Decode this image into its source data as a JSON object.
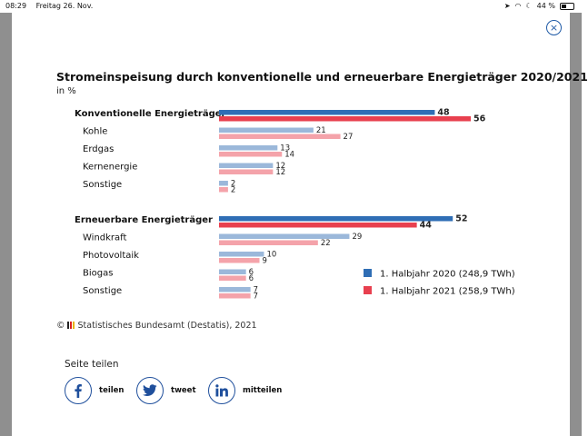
{
  "status_bar": {
    "time": "08:29",
    "date": "Freitag 26. Nov.",
    "battery": "44 %"
  },
  "dialog": {
    "close_symbol": "×"
  },
  "chart_data": {
    "type": "bar",
    "orientation": "horizontal",
    "title": "Stromeinspeisung durch konventionelle und erneuerbare Energieträger 2020/2021",
    "unit_label": "in %",
    "xlim": [
      0,
      56
    ],
    "grid": false,
    "legend_position": "bottom-right",
    "series": [
      {
        "name": "1. Halbjahr 2020 (248,9 TWh)",
        "color": "#2f6eb5",
        "light_color": "#9bb8da"
      },
      {
        "name": "1. Halbjahr 2021 (258,9 TWh)",
        "color": "#e8404f",
        "light_color": "#f4a3aa"
      }
    ],
    "groups": [
      {
        "label": "Konventionelle Energieträger",
        "values": [
          48,
          56
        ],
        "items": [
          {
            "label": "Kohle",
            "values": [
              21,
              27
            ]
          },
          {
            "label": "Erdgas",
            "values": [
              13,
              14
            ]
          },
          {
            "label": "Kernenergie",
            "values": [
              12,
              12
            ]
          },
          {
            "label": "Sonstige",
            "values": [
              2,
              2
            ]
          }
        ]
      },
      {
        "label": "Erneuerbare Energieträger",
        "values": [
          52,
          44
        ],
        "items": [
          {
            "label": "Windkraft",
            "values": [
              29,
              22
            ]
          },
          {
            "label": "Photovoltaik",
            "values": [
              10,
              9
            ]
          },
          {
            "label": "Biogas",
            "values": [
              6,
              6
            ]
          },
          {
            "label": "Sonstige",
            "values": [
              7,
              7
            ]
          }
        ]
      }
    ]
  },
  "source": {
    "copyright": "©",
    "text": "Statistisches Bundesamt (Destatis), 2021"
  },
  "share": {
    "title": "Seite teilen",
    "facebook": "teilen",
    "twitter": "tweet",
    "linkedin": "mitteilen"
  }
}
